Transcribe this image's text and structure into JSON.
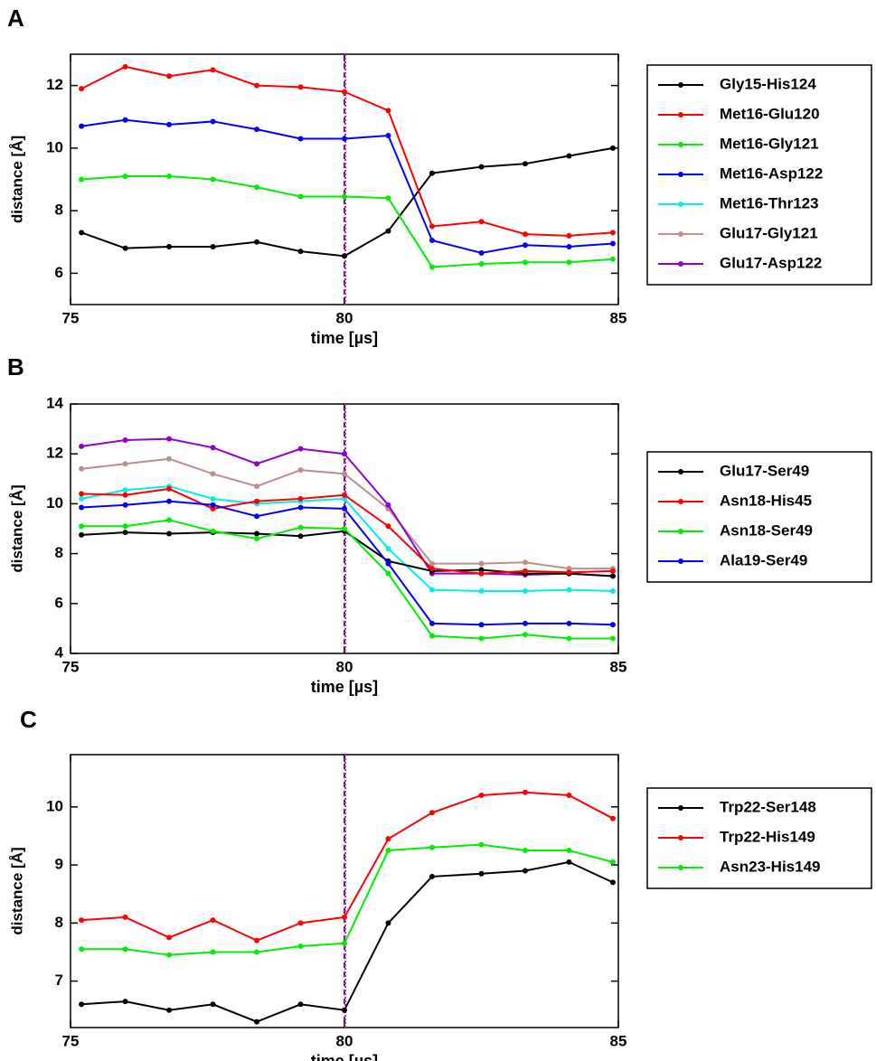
{
  "chart_data": [
    {
      "type": "line",
      "panel": "A",
      "xlabel": "time [µs]",
      "ylabel": "distance [Å]",
      "xlim": [
        75,
        85
      ],
      "xticks": [
        75,
        80,
        85
      ],
      "ylim": [
        5,
        13
      ],
      "yticks": [
        6,
        8,
        10,
        12
      ],
      "vline": 80,
      "vline_color": "#ff00ff",
      "x": [
        75.2,
        76.0,
        76.8,
        77.6,
        78.4,
        79.2,
        80.0,
        80.8,
        81.6,
        82.5,
        83.3,
        84.1,
        84.9
      ],
      "series": [
        {
          "name": "Gly15-His124",
          "color": "#000000",
          "values": [
            7.3,
            6.8,
            6.85,
            6.85,
            7.0,
            6.7,
            6.55,
            7.35,
            9.2,
            9.4,
            9.5,
            9.75,
            10.0
          ]
        },
        {
          "name": "Met16-Glu120",
          "color": "#ff0000",
          "values": [
            11.9,
            12.6,
            12.3,
            12.5,
            12.0,
            11.95,
            11.8,
            11.2,
            7.5,
            7.65,
            7.25,
            7.2,
            7.3
          ]
        },
        {
          "name": "Met16-Gly121",
          "color": "#00ee00",
          "values": [
            9.0,
            9.1,
            9.1,
            9.0,
            8.75,
            8.45,
            8.45,
            8.4,
            6.2,
            6.3,
            6.35,
            6.35,
            6.45
          ]
        },
        {
          "name": "Met16-Asp122",
          "color": "#0000ff",
          "values": [
            10.7,
            10.9,
            10.75,
            10.85,
            10.6,
            10.3,
            10.3,
            10.4,
            7.05,
            6.65,
            6.9,
            6.85,
            6.95
          ]
        },
        {
          "name": "Met16-Thr123",
          "color": "#00eeee",
          "values": [
            null,
            null,
            null,
            null,
            null,
            null,
            null,
            null,
            null,
            null,
            null,
            null,
            null
          ]
        },
        {
          "name": "Glu17-Gly121",
          "color": "#bc8f8f",
          "values": [
            null,
            null,
            null,
            null,
            null,
            null,
            null,
            null,
            null,
            null,
            null,
            null,
            null
          ]
        },
        {
          "name": "Glu17-Asp122",
          "color": "#9400d3",
          "values": [
            null,
            null,
            null,
            null,
            null,
            null,
            null,
            null,
            null,
            null,
            null,
            null,
            null
          ]
        }
      ]
    },
    {
      "type": "line",
      "panel": "B",
      "xlabel": "time [µs]",
      "ylabel": "distance [Å]",
      "xlim": [
        75,
        85
      ],
      "xticks": [
        75,
        80,
        85
      ],
      "ylim": [
        4,
        14
      ],
      "yticks": [
        4,
        6,
        8,
        10,
        12,
        14
      ],
      "vline": 80,
      "vline_color": "#ff00ff",
      "x": [
        75.2,
        76.0,
        76.8,
        77.6,
        78.4,
        79.2,
        80.0,
        80.8,
        81.6,
        82.5,
        83.3,
        84.1,
        84.9
      ],
      "series": [
        {
          "color": "#bc8f8f",
          "values": [
            11.4,
            11.6,
            11.8,
            11.2,
            10.7,
            11.35,
            11.2,
            9.8,
            7.6,
            7.6,
            7.65,
            7.4,
            7.4
          ]
        },
        {
          "color": "#9400d3",
          "values": [
            12.3,
            12.55,
            12.6,
            12.25,
            11.6,
            12.2,
            12.0,
            9.95,
            7.2,
            7.2,
            7.15,
            7.2,
            7.1
          ]
        },
        {
          "color": "#00eeee",
          "values": [
            10.2,
            10.55,
            10.7,
            10.2,
            10.0,
            10.1,
            10.2,
            8.2,
            6.55,
            6.5,
            6.5,
            6.55,
            6.5
          ]
        },
        {
          "name": "Glu17-Ser49",
          "color": "#000000",
          "values": [
            8.75,
            8.85,
            8.8,
            8.85,
            8.8,
            8.7,
            8.9,
            7.7,
            7.3,
            7.35,
            7.2,
            7.2,
            7.1
          ]
        },
        {
          "name": "Asn18-His45",
          "color": "#ff0000",
          "values": [
            10.4,
            10.35,
            10.6,
            9.8,
            10.1,
            10.2,
            10.35,
            9.1,
            7.4,
            7.2,
            7.3,
            7.25,
            7.3
          ]
        },
        {
          "name": "Asn18-Ser49",
          "color": "#00ee00",
          "values": [
            9.1,
            9.1,
            9.35,
            8.9,
            8.6,
            9.05,
            9.0,
            7.2,
            4.7,
            4.6,
            4.75,
            4.6,
            4.6
          ]
        },
        {
          "name": "Ala19-Ser49",
          "color": "#0000ff",
          "values": [
            9.85,
            9.95,
            10.1,
            9.95,
            9.5,
            9.85,
            9.8,
            7.6,
            5.2,
            5.15,
            5.2,
            5.2,
            5.15
          ]
        }
      ]
    },
    {
      "type": "line",
      "panel": "C",
      "xlabel": "time [µs]",
      "ylabel": "distance [Å]",
      "xlim": [
        75,
        85
      ],
      "xticks": [
        75,
        80,
        85
      ],
      "ylim": [
        6.2,
        10.9
      ],
      "yticks": [
        7,
        8,
        9,
        10
      ],
      "vline": 80,
      "vline_color": "#ff00ff",
      "x": [
        75.2,
        76.0,
        76.8,
        77.6,
        78.4,
        79.2,
        80.0,
        80.8,
        81.6,
        82.5,
        83.3,
        84.1,
        84.9
      ],
      "series": [
        {
          "name": "Trp22-Ser148",
          "color": "#000000",
          "values": [
            6.6,
            6.65,
            6.5,
            6.6,
            6.3,
            6.6,
            6.5,
            8.0,
            8.8,
            8.85,
            8.9,
            9.05,
            8.7
          ]
        },
        {
          "name": "Trp22-His149",
          "color": "#ff0000",
          "values": [
            8.05,
            8.1,
            7.75,
            8.05,
            7.7,
            8.0,
            8.1,
            9.45,
            9.9,
            10.2,
            10.25,
            10.2,
            9.8
          ]
        },
        {
          "name": "Asn23-His149",
          "color": "#00ee00",
          "values": [
            7.55,
            7.55,
            7.45,
            7.5,
            7.5,
            7.6,
            7.65,
            9.25,
            9.3,
            9.35,
            9.25,
            9.25,
            9.05
          ]
        }
      ]
    }
  ]
}
